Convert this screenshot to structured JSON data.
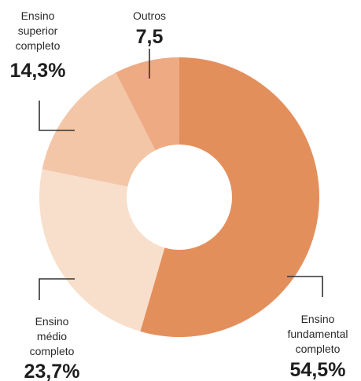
{
  "chart_data": {
    "type": "pie",
    "donut": true,
    "slices": [
      {
        "label_lines": [
          "Ensino",
          "fundamental",
          "completo"
        ],
        "value_label": "54,5%",
        "value": 54.5,
        "color": "#e38f5c"
      },
      {
        "label_lines": [
          "Ensino",
          "médio",
          "completo"
        ],
        "value_label": "23,7%",
        "value": 23.7,
        "color": "#f8dfcb"
      },
      {
        "label_lines": [
          "Ensino",
          "superior",
          "completo"
        ],
        "value_label": "14,3%",
        "value": 14.3,
        "color": "#f3c6a8"
      },
      {
        "label_lines": [
          "Outros"
        ],
        "value_label": "7,5",
        "value": 7.5,
        "color": "#eeaa83"
      }
    ],
    "start_angle_deg": 0,
    "direction": "clockwise"
  }
}
